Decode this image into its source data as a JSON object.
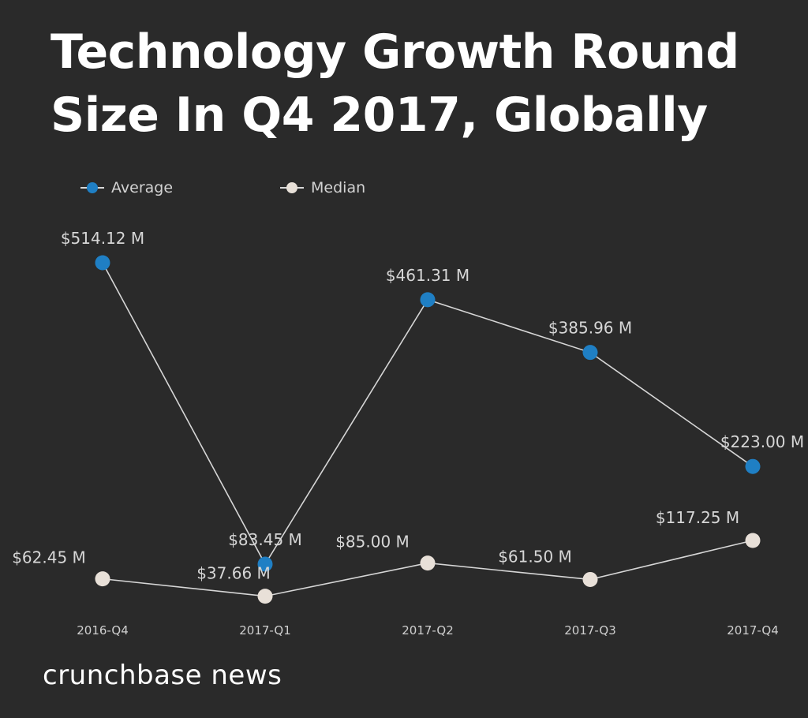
{
  "chart_data": {
    "type": "line",
    "title_lines": [
      "Technology Growth Round",
      "Size In Q4 2017, Globally"
    ],
    "categories": [
      "2016-Q4",
      "2017-Q1",
      "2017-Q2",
      "2017-Q3",
      "2017-Q4"
    ],
    "series": [
      {
        "name": "Average",
        "color": "#1f7fc4",
        "values": [
          514.12,
          83.45,
          461.31,
          385.96,
          223.0
        ],
        "labels": [
          "$514.12 M",
          "$83.45 M",
          "$461.31 M",
          "$385.96 M",
          "$223.00 M"
        ]
      },
      {
        "name": "Median",
        "color": "#e8e0d8",
        "values": [
          62.45,
          37.66,
          85.0,
          61.5,
          117.25
        ],
        "labels": [
          "$62.45 M",
          "$37.66 M",
          "$85.00 M",
          "$61.50 M",
          "$117.25 M"
        ]
      }
    ],
    "xlabel": "",
    "ylabel": "",
    "ylim": [
      0,
      600
    ],
    "grid": false,
    "legend_position": "top-left"
  },
  "footer": {
    "brand": "crunchbase news"
  }
}
